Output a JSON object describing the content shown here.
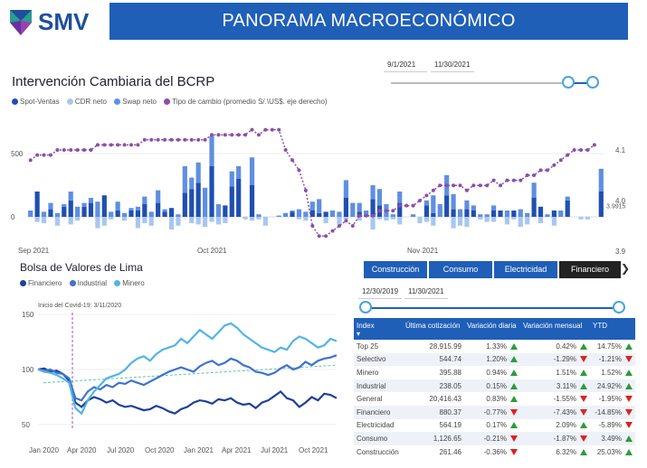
{
  "header": {
    "logo": "SMV",
    "title": "PANORAMA MACROECONÓMICO"
  },
  "intervention": {
    "title": "Intervención Cambiaria del BCRP",
    "date_start": "9/1/2021",
    "date_end": "11/30/2021",
    "legend": [
      "Spot-Ventas",
      "CDR neto",
      "Swap neto",
      "Tipo de cambio (promedio S/.\\US$. eje derecho)"
    ],
    "colors": [
      "#1f4fb0",
      "#a8c7ef",
      "#5f8fe0",
      "#8b4fa8"
    ]
  },
  "bolsa": {
    "title": "Bolsa de Valores de Lima",
    "legend": [
      "Financiero",
      "Industrial",
      "Minero"
    ],
    "colors": [
      "#1f3f9c",
      "#3f72d0",
      "#52b4e6"
    ],
    "annotation": "Inicio del Covid-19: 3/11/2020"
  },
  "tabs": {
    "items": [
      "Construcción",
      "Consumo",
      "Electricidad",
      "Financiero"
    ],
    "active": "Financiero",
    "arrow": "❯"
  },
  "index_filter": {
    "date_start": "12/30/2019",
    "date_end": "11/30/2021"
  },
  "table": {
    "headers": [
      "Index",
      "Última cotización",
      "Variación diaria",
      "Variación mensual",
      "YTD"
    ],
    "rows": [
      {
        "name": "Top 25",
        "last": "28,915.99",
        "daily": "1.33%",
        "daily_dir": "up",
        "monthly": "0.42%",
        "monthly_dir": "up",
        "ytd": "14.75%",
        "ytd_dir": "up"
      },
      {
        "name": "Selectivo",
        "last": "544.74",
        "daily": "1.20%",
        "daily_dir": "up",
        "monthly": "-1.29%",
        "monthly_dir": "down",
        "ytd": "-1.21%",
        "ytd_dir": "down"
      },
      {
        "name": "Minero",
        "last": "395.88",
        "daily": "0.94%",
        "daily_dir": "up",
        "monthly": "1.51%",
        "monthly_dir": "up",
        "ytd": "1.52%",
        "ytd_dir": "up"
      },
      {
        "name": "Industrial",
        "last": "238.05",
        "daily": "0.15%",
        "daily_dir": "up",
        "monthly": "3.11%",
        "monthly_dir": "up",
        "ytd": "24.92%",
        "ytd_dir": "up"
      },
      {
        "name": "General",
        "last": "20,416.43",
        "daily": "0.83%",
        "daily_dir": "up",
        "monthly": "-1.55%",
        "monthly_dir": "down",
        "ytd": "-1.95%",
        "ytd_dir": "down"
      },
      {
        "name": "Financiero",
        "last": "880.37",
        "daily": "-0.77%",
        "daily_dir": "down",
        "monthly": "-7.43%",
        "monthly_dir": "down",
        "ytd": "-14.85%",
        "ytd_dir": "down"
      },
      {
        "name": "Electricidad",
        "last": "564.19",
        "daily": "0.17%",
        "daily_dir": "up",
        "monthly": "2.09%",
        "monthly_dir": "up",
        "ytd": "-5.89%",
        "ytd_dir": "down"
      },
      {
        "name": "Consumo",
        "last": "1,126.65",
        "daily": "-0.21%",
        "daily_dir": "down",
        "monthly": "-1.87%",
        "monthly_dir": "down",
        "ytd": "3.49%",
        "ytd_dir": "up"
      },
      {
        "name": "Construcción",
        "last": "261.46",
        "daily": "-0.36%",
        "daily_dir": "down",
        "monthly": "6.32%",
        "monthly_dir": "up",
        "ytd": "25.03%",
        "ytd_dir": "up"
      }
    ]
  },
  "chart_data": [
    {
      "type": "bar",
      "title": "Intervención Cambiaria del BCRP",
      "y_ticks": [
        "500",
        "0"
      ],
      "y2_ticks": [
        "4.1",
        "4.0",
        "3.9"
      ],
      "y2_label_last": "3.9915",
      "x_ticks": [
        "Sep 2021",
        "Oct 2021",
        "Nov 2021"
      ],
      "ylim": [
        -200,
        750
      ],
      "y2lim": [
        3.9,
        4.15
      ],
      "series": [
        {
          "name": "Spot-Ventas",
          "values": [
            0,
            200,
            0,
            60,
            0,
            80,
            130,
            0,
            80,
            110,
            0,
            170,
            0,
            50,
            0,
            50,
            50,
            100,
            0,
            110,
            40,
            70,
            0,
            190,
            220,
            270,
            0,
            400,
            0,
            90,
            240,
            300,
            0,
            250,
            0,
            0,
            0,
            0,
            0,
            40,
            0,
            0,
            50,
            30,
            40,
            0,
            0,
            150,
            0,
            40,
            0,
            140,
            90,
            0,
            0,
            110,
            0,
            0,
            0,
            90,
            30,
            0,
            170,
            60,
            0,
            60,
            50,
            0,
            0,
            50,
            50,
            0,
            50,
            0,
            0,
            150,
            80,
            0,
            50,
            0,
            130,
            0,
            0,
            0,
            0,
            200
          ]
        },
        {
          "name": "CDR neto",
          "values": [
            0,
            -40,
            -50,
            0,
            -70,
            0,
            -60,
            -30,
            0,
            0,
            -90,
            -70,
            -20,
            0,
            -30,
            0,
            -90,
            -50,
            -70,
            0,
            0,
            -100,
            -70,
            0,
            -50,
            -60,
            -80,
            -40,
            -60,
            -50,
            0,
            0,
            -20,
            -30,
            -20,
            -70,
            0,
            0,
            0,
            0,
            -20,
            -30,
            0,
            0,
            -50,
            0,
            -60,
            -20,
            0,
            -30,
            0,
            -100,
            -20,
            -30,
            -20,
            -60,
            0,
            0,
            -50,
            -40,
            -70,
            0,
            0,
            -90,
            -70,
            -80,
            0,
            -20,
            -40,
            -40,
            0,
            -60,
            -20,
            -80,
            -60,
            0,
            -50,
            0,
            -70,
            0,
            0,
            0,
            -20,
            -20,
            0,
            0
          ]
        },
        {
          "name": "Swap neto",
          "values": [
            50,
            0,
            40,
            50,
            30,
            20,
            70,
            80,
            30,
            40,
            120,
            0,
            40,
            70,
            30,
            20,
            30,
            60,
            40,
            100,
            20,
            0,
            20,
            210,
            90,
            160,
            230,
            240,
            100,
            0,
            120,
            100,
            0,
            220,
            20,
            0,
            0,
            10,
            30,
            10,
            60,
            40,
            70,
            110,
            0,
            50,
            40,
            140,
            110,
            70,
            50,
            110,
            130,
            100,
            20,
            90,
            0,
            20,
            0,
            40,
            140,
            100,
            160,
            120,
            60,
            70,
            40,
            20,
            20,
            40,
            0,
            50,
            0,
            60,
            30,
            120,
            0,
            20,
            0,
            50,
            30,
            0,
            0,
            0,
            0,
            180
          ]
        },
        {
          "name": "Tipo de cambio",
          "values": [
            4.08,
            4.09,
            4.09,
            4.09,
            4.1,
            4.1,
            4.1,
            4.1,
            4.1,
            4.1,
            4.11,
            4.11,
            4.11,
            4.11,
            4.11,
            4.11,
            4.11,
            4.12,
            4.12,
            4.12,
            4.12,
            4.12,
            4.12,
            4.12,
            4.12,
            4.12,
            4.12,
            4.13,
            4.13,
            4.13,
            4.13,
            4.13,
            4.13,
            4.14,
            4.13,
            4.14,
            4.14,
            4.14,
            4.1,
            4.08,
            4.06,
            4.02,
            3.95,
            3.93,
            3.93,
            3.94,
            3.95,
            3.96,
            3.95,
            3.97,
            3.97,
            3.97,
            3.98,
            3.98,
            3.98,
            3.99,
            3.99,
            3.99,
            4.0,
            4.01,
            4.02,
            4.03,
            4.03,
            4.03,
            4.03,
            4.02,
            4.03,
            4.03,
            4.03,
            4.04,
            4.03,
            4.04,
            4.04,
            4.04,
            4.05,
            4.05,
            4.06,
            4.06,
            4.07,
            4.08,
            4.09,
            4.1,
            4.1,
            4.1,
            4.11
          ]
        }
      ]
    },
    {
      "type": "line",
      "title": "Bolsa de Valores de Lima",
      "y_ticks": [
        "150",
        "100",
        "50"
      ],
      "ylim": [
        45,
        160
      ],
      "x_ticks": [
        "Jan 2020",
        "Apr 2020",
        "Jul 2020",
        "Oct 2020",
        "Jan 2021",
        "Apr 2021",
        "Jul 2021",
        "Oct 2021"
      ],
      "annotation": "Inicio del Covid-19: 3/11/2020",
      "series": [
        {
          "name": "Financiero",
          "values": [
            100,
            101,
            98,
            99,
            96,
            90,
            70,
            66,
            72,
            75,
            73,
            70,
            72,
            68,
            66,
            67,
            65,
            63,
            64,
            67,
            65,
            62,
            60,
            64,
            66,
            70,
            72,
            71,
            69,
            73,
            72,
            74,
            70,
            68,
            69,
            65,
            70,
            72,
            76,
            80,
            74,
            72,
            66,
            70,
            75,
            72,
            78,
            77,
            74
          ]
        },
        {
          "name": "Industrial",
          "values": [
            100,
            99,
            100,
            97,
            96,
            92,
            74,
            72,
            80,
            84,
            82,
            86,
            84,
            88,
            87,
            90,
            88,
            86,
            89,
            92,
            95,
            98,
            100,
            102,
            100,
            98,
            103,
            106,
            108,
            104,
            106,
            110,
            108,
            104,
            102,
            98,
            97,
            95,
            97,
            101,
            104,
            100,
            102,
            107,
            104,
            108,
            110,
            111,
            113
          ]
        },
        {
          "name": "Minero",
          "values": [
            100,
            98,
            97,
            95,
            92,
            88,
            65,
            60,
            72,
            80,
            86,
            92,
            94,
            96,
            100,
            106,
            110,
            112,
            108,
            114,
            118,
            120,
            122,
            128,
            124,
            130,
            136,
            132,
            128,
            134,
            140,
            142,
            138,
            132,
            128,
            124,
            120,
            118,
            116,
            120,
            118,
            126,
            130,
            128,
            124,
            120,
            122,
            128,
            126
          ]
        }
      ]
    }
  ]
}
